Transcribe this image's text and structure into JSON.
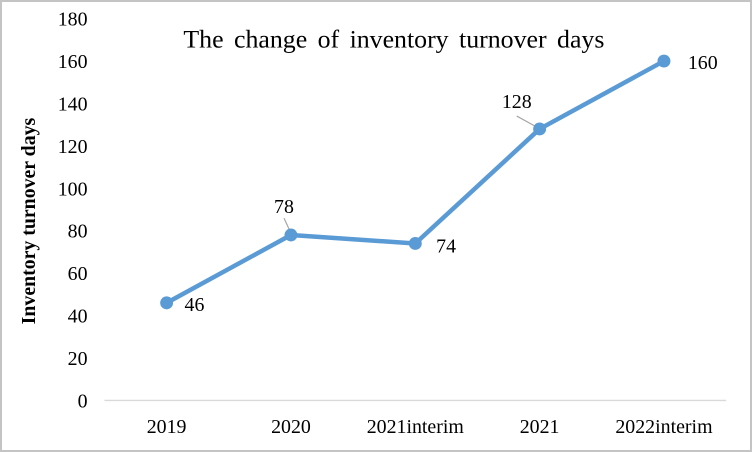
{
  "chart_data": {
    "type": "line",
    "title": "The change of inventory turnover days",
    "ylabel": "Inventory turnover days",
    "xlabel": "",
    "categories": [
      "2019",
      "2020",
      "2021interim",
      "2021",
      "2022interim"
    ],
    "series": [
      {
        "name": "Inventory turnover days",
        "values": [
          46,
          78,
          74,
          128,
          160
        ]
      }
    ],
    "data_labels": [
      "46",
      "78",
      "74",
      "128",
      "160"
    ],
    "ylim": [
      0,
      180
    ],
    "yticks": [
      0,
      20,
      40,
      60,
      80,
      100,
      120,
      140,
      160,
      180
    ],
    "grid": false,
    "legend": "none",
    "line_color": "#5B9BD5",
    "marker_color": "#5B9BD5",
    "axis_line_color": "#D9D9D9",
    "leader_line_color": "#A6A6A6",
    "text_color": "#000000",
    "frame_border_color": "#C4C4C4"
  }
}
